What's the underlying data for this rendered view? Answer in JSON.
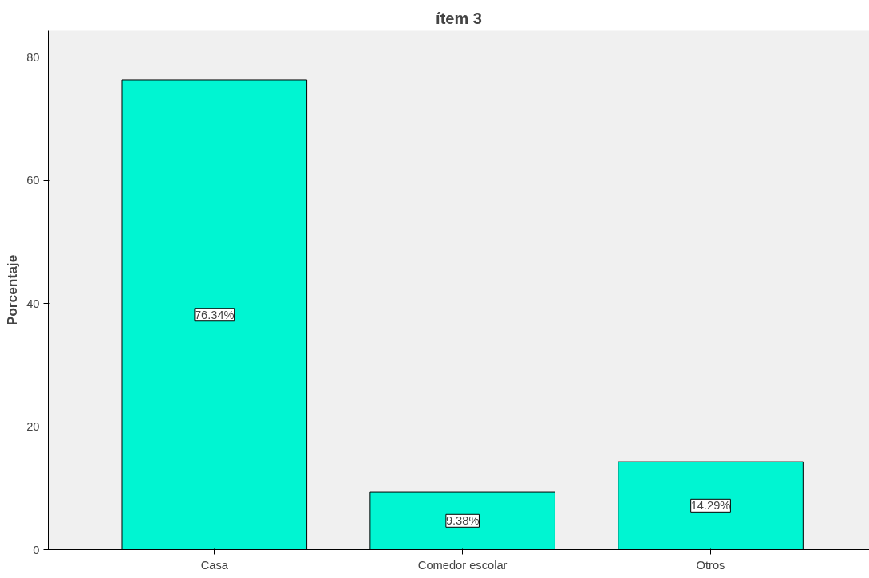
{
  "chart_data": {
    "type": "bar",
    "title": "ítem 3",
    "ylabel": "Porcentaje",
    "categories": [
      "Casa",
      "Comedor escolar",
      "Otros"
    ],
    "values": [
      76.34,
      9.38,
      14.29
    ],
    "value_labels": [
      "76.34%",
      "9.38%",
      "14.29%"
    ],
    "color": "#00f5d2",
    "ylim": [
      0,
      84.3
    ],
    "yticks": [
      0,
      20,
      40,
      60,
      80
    ],
    "grid": false
  }
}
